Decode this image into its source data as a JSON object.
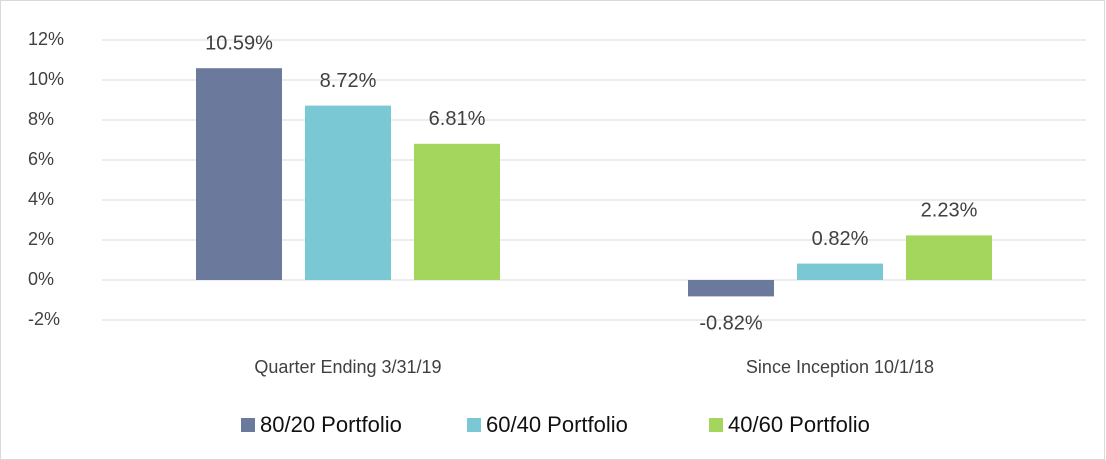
{
  "chart_data": {
    "type": "bar",
    "categories": [
      "Quarter Ending 3/31/19",
      "Since Inception 10/1/18"
    ],
    "series": [
      {
        "name": "80/20 Portfolio",
        "color": "#6b7a9c",
        "values": [
          10.59,
          -0.82
        ],
        "value_labels": [
          "10.59%",
          "-0.82%"
        ]
      },
      {
        "name": "60/40 Portfolio",
        "color": "#7ac8d4",
        "values": [
          8.72,
          0.82
        ],
        "value_labels": [
          "8.72%",
          "0.82%"
        ]
      },
      {
        "name": "40/60 Portfolio",
        "color": "#a4d65e",
        "values": [
          6.81,
          2.23
        ],
        "value_labels": [
          "6.81%",
          "2.23%"
        ]
      }
    ],
    "ylim": [
      -2,
      12
    ],
    "yticks": [
      {
        "value": -2,
        "label": "-2%"
      },
      {
        "value": 0,
        "label": "0%"
      },
      {
        "value": 2,
        "label": "2%"
      },
      {
        "value": 4,
        "label": "4%"
      },
      {
        "value": 6,
        "label": "6%"
      },
      {
        "value": 8,
        "label": "8%"
      },
      {
        "value": 10,
        "label": "10%"
      },
      {
        "value": 12,
        "label": "12%"
      }
    ],
    "grid": true,
    "legend": "bottom"
  }
}
